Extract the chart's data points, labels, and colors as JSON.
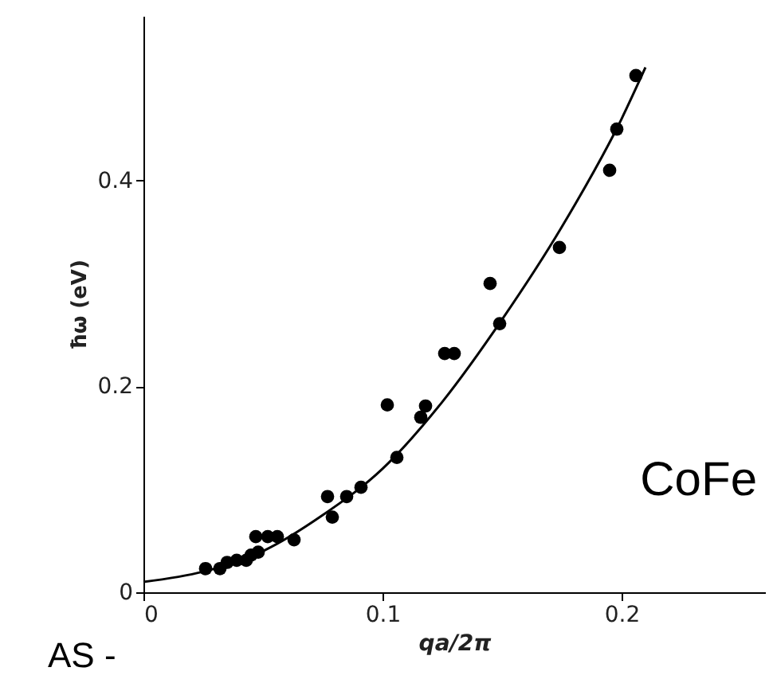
{
  "chart_data": {
    "type": "scatter",
    "xlabel": "qa/2π",
    "ylabel": "ħω (eV)",
    "xlim": [
      0,
      0.26
    ],
    "ylim": [
      0,
      0.56
    ],
    "xticks": [
      0,
      0.1,
      0.2
    ],
    "yticks": [
      0,
      0.2,
      0.4
    ],
    "grid": false,
    "annotations": [
      "CoFe",
      "AS -"
    ],
    "series": [
      {
        "marker": "circle",
        "color": "#000000",
        "x": [
          0.026,
          0.032,
          0.035,
          0.039,
          0.043,
          0.045,
          0.048,
          0.047,
          0.052,
          0.056,
          0.063,
          0.077,
          0.079,
          0.085,
          0.091,
          0.102,
          0.106,
          0.116,
          0.118,
          0.126,
          0.13,
          0.149,
          0.145,
          0.174,
          0.195,
          0.198,
          0.206
        ],
        "values": [
          0.023,
          0.023,
          0.029,
          0.031,
          0.031,
          0.036,
          0.039,
          0.054,
          0.054,
          0.054,
          0.051,
          0.093,
          0.073,
          0.093,
          0.102,
          0.182,
          0.131,
          0.17,
          0.181,
          0.232,
          0.232,
          0.261,
          0.3,
          0.335,
          0.41,
          0.45,
          0.502
        ]
      },
      {
        "type": "line",
        "marker": "none",
        "color": "#000000",
        "x": [
          0,
          0.025,
          0.05,
          0.075,
          0.1,
          0.125,
          0.15,
          0.175,
          0.2,
          0.21
        ],
        "values": [
          0.01,
          0.02,
          0.04,
          0.075,
          0.12,
          0.185,
          0.265,
          0.355,
          0.46,
          0.51
        ]
      }
    ]
  }
}
